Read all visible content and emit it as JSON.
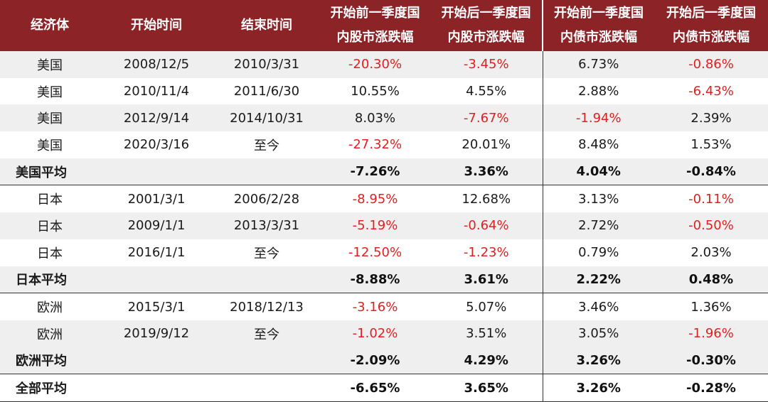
{
  "headers": [
    {
      "line1": "经济体",
      "line2": ""
    },
    {
      "line1": "开始时间",
      "line2": ""
    },
    {
      "line1": "结束时间",
      "line2": ""
    },
    {
      "line1": "开始前一季度国",
      "line2": "内股市涨跌幅"
    },
    {
      "line1": "开始后一季度国",
      "line2": "内股市涨跌幅"
    },
    {
      "line1": "开始前一季度国",
      "line2": "内债市涨跌幅"
    },
    {
      "line1": "开始后一季度国",
      "line2": "内债市涨跌幅"
    }
  ],
  "rows": [
    {
      "type": "data",
      "cells": [
        "美国",
        "2008/12/5",
        "2010/3/31",
        "-20.30%",
        "-3.45%",
        "6.73%",
        "-0.86%"
      ]
    },
    {
      "type": "data",
      "cells": [
        "美国",
        "2010/11/4",
        "2011/6/30",
        "10.55%",
        "4.55%",
        "2.88%",
        "-6.43%"
      ]
    },
    {
      "type": "data",
      "cells": [
        "美国",
        "2012/9/14",
        "2014/10/31",
        "8.03%",
        "-7.67%",
        "-1.94%",
        "2.39%"
      ]
    },
    {
      "type": "data",
      "cells": [
        "美国",
        "2020/3/16",
        "至今",
        "-27.32%",
        "20.01%",
        "8.48%",
        "1.53%"
      ]
    },
    {
      "type": "avg",
      "cells": [
        "美国平均",
        "",
        "",
        "-7.26%",
        "3.36%",
        "4.04%",
        "-0.84%"
      ]
    },
    {
      "type": "data",
      "cells": [
        "日本",
        "2001/3/1",
        "2006/2/28",
        "-8.95%",
        "12.68%",
        "3.13%",
        "-0.11%"
      ]
    },
    {
      "type": "data",
      "cells": [
        "日本",
        "2009/1/1",
        "2013/3/31",
        "-5.19%",
        "-0.64%",
        "2.72%",
        "-0.50%"
      ]
    },
    {
      "type": "data",
      "cells": [
        "日本",
        "2016/1/1",
        "至今",
        "-12.50%",
        "-1.23%",
        "0.79%",
        "2.03%"
      ]
    },
    {
      "type": "avg",
      "cells": [
        "日本平均",
        "",
        "",
        "-8.88%",
        "3.61%",
        "2.22%",
        "0.48%"
      ]
    },
    {
      "type": "data",
      "cells": [
        "欧洲",
        "2015/3/1",
        "2018/12/13",
        "-3.16%",
        "5.07%",
        "3.46%",
        "1.36%"
      ]
    },
    {
      "type": "data",
      "cells": [
        "欧洲",
        "2019/9/12",
        "至今",
        "-1.02%",
        "3.51%",
        "3.05%",
        "-1.96%"
      ]
    },
    {
      "type": "avg",
      "cells": [
        "欧洲平均",
        "",
        "",
        "-2.09%",
        "4.29%",
        "3.26%",
        "-0.30%"
      ]
    },
    {
      "type": "avg",
      "cells": [
        "全部平均",
        "",
        "",
        "-6.65%",
        "3.65%",
        "3.26%",
        "-0.28%"
      ]
    }
  ],
  "colors": {
    "header_bg": "#8b2327",
    "negative": "#e02020",
    "shade": "#efefef"
  }
}
